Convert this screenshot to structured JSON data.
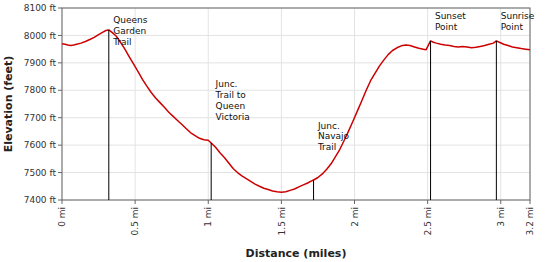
{
  "chart_data": {
    "type": "line",
    "x_label": "Distance (miles)",
    "y_label": "Elevation (feet)",
    "xlim": [
      0,
      3.2
    ],
    "ylim": [
      7400,
      8100
    ],
    "xticks": [
      {
        "value": 0,
        "label": "0 mi"
      },
      {
        "value": 0.5,
        "label": "0.5 mi"
      },
      {
        "value": 1.0,
        "label": "1 mi"
      },
      {
        "value": 1.5,
        "label": "1.5 mi"
      },
      {
        "value": 2.0,
        "label": "2 mi"
      },
      {
        "value": 2.5,
        "label": "2.5 mi"
      },
      {
        "value": 3.0,
        "label": "3 mi"
      },
      {
        "value": 3.2,
        "label": "3.2 mi"
      }
    ],
    "yticks": [
      {
        "value": 7400,
        "label": "7400 ft"
      },
      {
        "value": 7500,
        "label": "7500 ft"
      },
      {
        "value": 7600,
        "label": "7600 ft"
      },
      {
        "value": 7700,
        "label": "7700 ft"
      },
      {
        "value": 7800,
        "label": "7800 ft"
      },
      {
        "value": 7900,
        "label": "7900 ft"
      },
      {
        "value": 8000,
        "label": "8000 ft"
      },
      {
        "value": 8100,
        "label": "8100 ft"
      }
    ],
    "grid": true,
    "x": [
      0.0,
      0.02,
      0.04,
      0.06,
      0.08,
      0.1,
      0.13,
      0.16,
      0.19,
      0.22,
      0.25,
      0.28,
      0.3,
      0.32,
      0.34,
      0.37,
      0.4,
      0.43,
      0.46,
      0.49,
      0.52,
      0.55,
      0.58,
      0.61,
      0.64,
      0.67,
      0.7,
      0.73,
      0.76,
      0.79,
      0.82,
      0.85,
      0.88,
      0.91,
      0.94,
      0.97,
      1.0,
      1.02,
      1.05,
      1.08,
      1.11,
      1.14,
      1.17,
      1.2,
      1.23,
      1.26,
      1.29,
      1.32,
      1.35,
      1.38,
      1.41,
      1.44,
      1.47,
      1.5,
      1.53,
      1.56,
      1.59,
      1.62,
      1.65,
      1.68,
      1.7,
      1.72,
      1.75,
      1.78,
      1.81,
      1.84,
      1.87,
      1.9,
      1.93,
      1.96,
      1.99,
      2.02,
      2.05,
      2.08,
      2.11,
      2.14,
      2.17,
      2.2,
      2.23,
      2.26,
      2.29,
      2.32,
      2.35,
      2.38,
      2.41,
      2.44,
      2.47,
      2.49,
      2.52,
      2.54,
      2.56,
      2.59,
      2.62,
      2.65,
      2.68,
      2.71,
      2.74,
      2.77,
      2.8,
      2.83,
      2.86,
      2.89,
      2.92,
      2.95,
      2.97,
      2.99,
      3.02,
      3.05,
      3.08,
      3.11,
      3.14,
      3.17,
      3.2
    ],
    "series": [
      {
        "color": "#cc0000",
        "values": [
          7970,
          7968,
          7965,
          7963,
          7965,
          7968,
          7972,
          7978,
          7985,
          7993,
          8003,
          8012,
          8018,
          8020,
          8012,
          7998,
          7975,
          7950,
          7922,
          7895,
          7868,
          7840,
          7815,
          7792,
          7772,
          7755,
          7738,
          7720,
          7705,
          7690,
          7675,
          7660,
          7645,
          7635,
          7625,
          7620,
          7618,
          7608,
          7592,
          7572,
          7555,
          7535,
          7515,
          7500,
          7488,
          7478,
          7468,
          7458,
          7450,
          7443,
          7438,
          7433,
          7430,
          7428,
          7430,
          7435,
          7440,
          7448,
          7455,
          7462,
          7468,
          7473,
          7482,
          7495,
          7512,
          7532,
          7558,
          7585,
          7618,
          7652,
          7688,
          7725,
          7762,
          7800,
          7835,
          7862,
          7888,
          7910,
          7930,
          7945,
          7955,
          7962,
          7965,
          7963,
          7958,
          7953,
          7950,
          7948,
          7980,
          7975,
          7972,
          7968,
          7965,
          7963,
          7960,
          7958,
          7960,
          7958,
          7955,
          7957,
          7960,
          7963,
          7968,
          7972,
          7980,
          7975,
          7968,
          7963,
          7958,
          7955,
          7952,
          7950,
          7948
        ]
      }
    ],
    "annotations": [
      {
        "x": 0.32,
        "y": 8020,
        "label": "Queens\nGarden\nTrail",
        "label_x": 0.35,
        "label_y": 8075
      },
      {
        "x": 1.02,
        "y": 7608,
        "label": "Junc.\nTrail to\nQueen\nVictoria",
        "label_x": 1.05,
        "label_y": 7840
      },
      {
        "x": 1.72,
        "y": 7473,
        "label": "Junc.\nNavajo\nTrail",
        "label_x": 1.75,
        "label_y": 7690
      },
      {
        "x": 2.52,
        "y": 7980,
        "label": "Sunset\nPoint",
        "label_x": 2.55,
        "label_y": 8090
      },
      {
        "x": 2.97,
        "y": 7980,
        "label": "Sunrise\nPoint",
        "label_x": 3.0,
        "label_y": 8090
      }
    ]
  }
}
